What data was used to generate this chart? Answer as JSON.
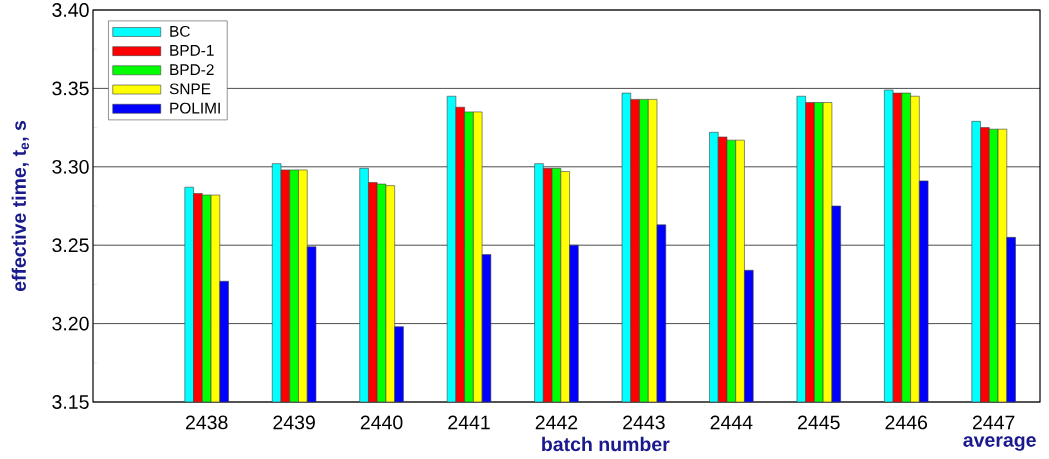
{
  "chart_data": {
    "type": "bar",
    "xlabel": "batch number",
    "ylabel": "effective time, t$_{e}$, s",
    "categories": [
      "2438",
      "2439",
      "2440",
      "2441",
      "2442",
      "2443",
      "2444",
      "2445",
      "2446",
      "2447"
    ],
    "series": [
      {
        "name": "BC",
        "color": "#00ffff",
        "values": [
          3.287,
          3.302,
          3.299,
          3.345,
          3.302,
          3.347,
          3.322,
          3.345,
          3.349,
          3.329
        ]
      },
      {
        "name": "BPD-1",
        "color": "#ff0000",
        "values": [
          3.283,
          3.298,
          3.29,
          3.338,
          3.299,
          3.343,
          3.319,
          3.341,
          3.347,
          3.325
        ]
      },
      {
        "name": "BPD-2",
        "color": "#00ff00",
        "values": [
          3.282,
          3.298,
          3.289,
          3.335,
          3.299,
          3.343,
          3.317,
          3.341,
          3.347,
          3.324
        ]
      },
      {
        "name": "SNPE",
        "color": "#ffff00",
        "values": [
          3.282,
          3.298,
          3.288,
          3.335,
          3.297,
          3.343,
          3.317,
          3.341,
          3.345,
          3.324
        ]
      },
      {
        "name": "POLIMI",
        "color": "#0000ff",
        "values": [
          3.227,
          3.249,
          3.198,
          3.244,
          3.25,
          3.263,
          3.234,
          3.275,
          3.291,
          3.255
        ]
      }
    ],
    "ylim": [
      3.15,
      3.4
    ],
    "yticks": [
      3.15,
      {
        "value": 3.175,
        "label": null
      },
      {
        "value": 3.2,
        "label": "3.20"
      },
      {
        "value": 3.225,
        "label": null
      },
      3.25,
      {
        "value": 3.275,
        "label": null
      },
      {
        "value": 3.3,
        "label": "3.30"
      },
      {
        "value": 3.325,
        "label": null
      },
      3.35,
      {
        "value": 3.375,
        "label": null
      },
      {
        "value": 3.4,
        "label": "3.40"
      }
    ],
    "grid": "y",
    "legend": "top left",
    "annotations": [
      "average"
    ]
  }
}
